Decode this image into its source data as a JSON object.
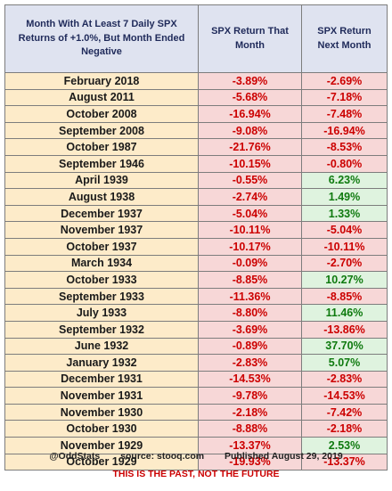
{
  "chart_data": {
    "type": "table",
    "headers": [
      "Month With At Least 7 Daily SPX Returns of +1.0%, But Month Ended Negative",
      "SPX Return That Month",
      "SPX Return Next Month"
    ],
    "rows": [
      [
        "February 2018",
        "-3.89%",
        "-2.69%"
      ],
      [
        "August 2011",
        "-5.68%",
        "-7.18%"
      ],
      [
        "October 2008",
        "-16.94%",
        "-7.48%"
      ],
      [
        "September 2008",
        "-9.08%",
        "-16.94%"
      ],
      [
        "October 1987",
        "-21.76%",
        "-8.53%"
      ],
      [
        "September 1946",
        "-10.15%",
        "-0.80%"
      ],
      [
        "April 1939",
        "-0.55%",
        "6.23%"
      ],
      [
        "August 1938",
        "-2.74%",
        "1.49%"
      ],
      [
        "December 1937",
        "-5.04%",
        "1.33%"
      ],
      [
        "November 1937",
        "-10.11%",
        "-5.04%"
      ],
      [
        "October 1937",
        "-10.17%",
        "-10.11%"
      ],
      [
        "March 1934",
        "-0.09%",
        "-2.70%"
      ],
      [
        "October 1933",
        "-8.85%",
        "10.27%"
      ],
      [
        "September 1933",
        "-11.36%",
        "-8.85%"
      ],
      [
        "July 1933",
        "-8.80%",
        "11.46%"
      ],
      [
        "September 1932",
        "-3.69%",
        "-13.86%"
      ],
      [
        "June 1932",
        "-0.89%",
        "37.70%"
      ],
      [
        "January 1932",
        "-2.83%",
        "5.07%"
      ],
      [
        "December 1931",
        "-14.53%",
        "-2.83%"
      ],
      [
        "November 1931",
        "-9.78%",
        "-14.53%"
      ],
      [
        "November 1930",
        "-2.18%",
        "-7.42%"
      ],
      [
        "October 1930",
        "-8.88%",
        "-2.18%"
      ],
      [
        "November 1929",
        "-13.37%",
        "2.53%"
      ],
      [
        "October 1929",
        "-19.93%",
        "-13.37%"
      ]
    ]
  },
  "footer": {
    "handle": "@OddStats",
    "source": "source: stooq.com",
    "published": "Published August 29, 2019",
    "disclaimer": "THIS IS THE PAST, NOT THE FUTURE"
  },
  "colors": {
    "header_bg": "#dfe3f0",
    "month_bg": "#fdebc9",
    "negative_bg": "#f7d7d7",
    "negative_text": "#cc0000",
    "positive_bg": "#dff3df",
    "positive_text": "#0f7a0f"
  }
}
